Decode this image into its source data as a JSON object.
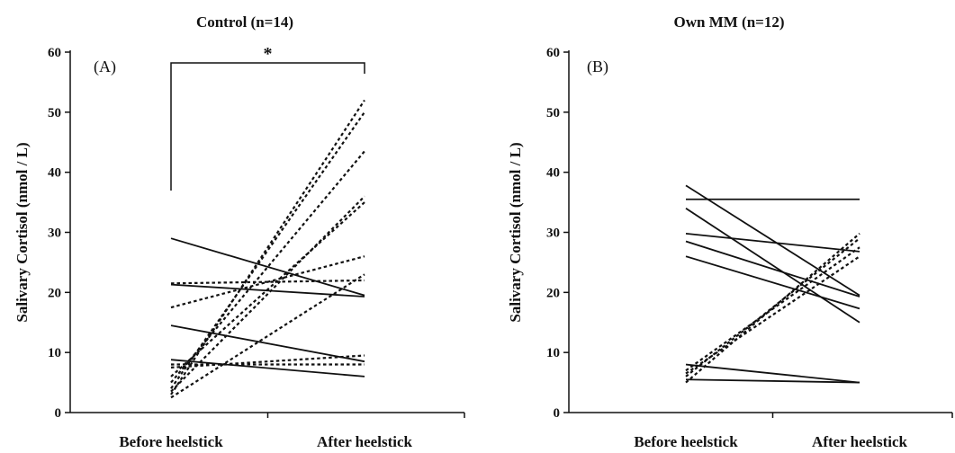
{
  "chart_data": [
    {
      "type": "line",
      "title": "Control (n=14)",
      "panel_label": "(A)",
      "ylabel": "Salivary Cortisol (nmol / L)",
      "categories": [
        "Before heelstick",
        "After heelstick"
      ],
      "ylim": [
        0,
        60
      ],
      "yticks": [
        "0",
        "10",
        "20",
        "30",
        "40",
        "50",
        "60"
      ],
      "significance": "*",
      "series": [
        {
          "values": [
            29,
            19.5
          ],
          "style": "solid"
        },
        {
          "values": [
            21.3,
            19.3
          ],
          "style": "solid"
        },
        {
          "values": [
            14.5,
            8.5
          ],
          "style": "solid"
        },
        {
          "values": [
            8.8,
            6
          ],
          "style": "solid"
        },
        {
          "values": [
            3,
            52
          ],
          "style": "dashed"
        },
        {
          "values": [
            4,
            50
          ],
          "style": "dashed"
        },
        {
          "values": [
            5,
            43.5
          ],
          "style": "dashed"
        },
        {
          "values": [
            3.5,
            36
          ],
          "style": "dashed"
        },
        {
          "values": [
            6,
            35
          ],
          "style": "dashed"
        },
        {
          "values": [
            17.5,
            26
          ],
          "style": "dashed"
        },
        {
          "values": [
            2.5,
            23
          ],
          "style": "dashed"
        },
        {
          "values": [
            21.5,
            22
          ],
          "style": "dashed"
        },
        {
          "values": [
            7.5,
            9.5
          ],
          "style": "dashed"
        },
        {
          "values": [
            8,
            8
          ],
          "style": "dashed"
        }
      ]
    },
    {
      "type": "line",
      "title": "Own MM (n=12)",
      "panel_label": "(B)",
      "ylabel": "Salivary Cortisol (nmol / L)",
      "categories": [
        "Before heelstick",
        "After heelstick"
      ],
      "ylim": [
        0,
        60
      ],
      "yticks": [
        "0",
        "10",
        "20",
        "30",
        "40",
        "50",
        "60"
      ],
      "series": [
        {
          "values": [
            35.5,
            35.5
          ],
          "style": "solid"
        },
        {
          "values": [
            37.8,
            19.5
          ],
          "style": "solid"
        },
        {
          "values": [
            34,
            15
          ],
          "style": "solid"
        },
        {
          "values": [
            29.8,
            26.8
          ],
          "style": "solid"
        },
        {
          "values": [
            28.5,
            19.3
          ],
          "style": "solid"
        },
        {
          "values": [
            26,
            17.3
          ],
          "style": "solid"
        },
        {
          "values": [
            8,
            5
          ],
          "style": "solid"
        },
        {
          "values": [
            5.5,
            5
          ],
          "style": "solid"
        },
        {
          "values": [
            5,
            29.8
          ],
          "style": "dashed"
        },
        {
          "values": [
            6,
            29
          ],
          "style": "dashed"
        },
        {
          "values": [
            7,
            27.5
          ],
          "style": "dashed"
        },
        {
          "values": [
            6.5,
            26
          ],
          "style": "dashed"
        }
      ]
    }
  ]
}
